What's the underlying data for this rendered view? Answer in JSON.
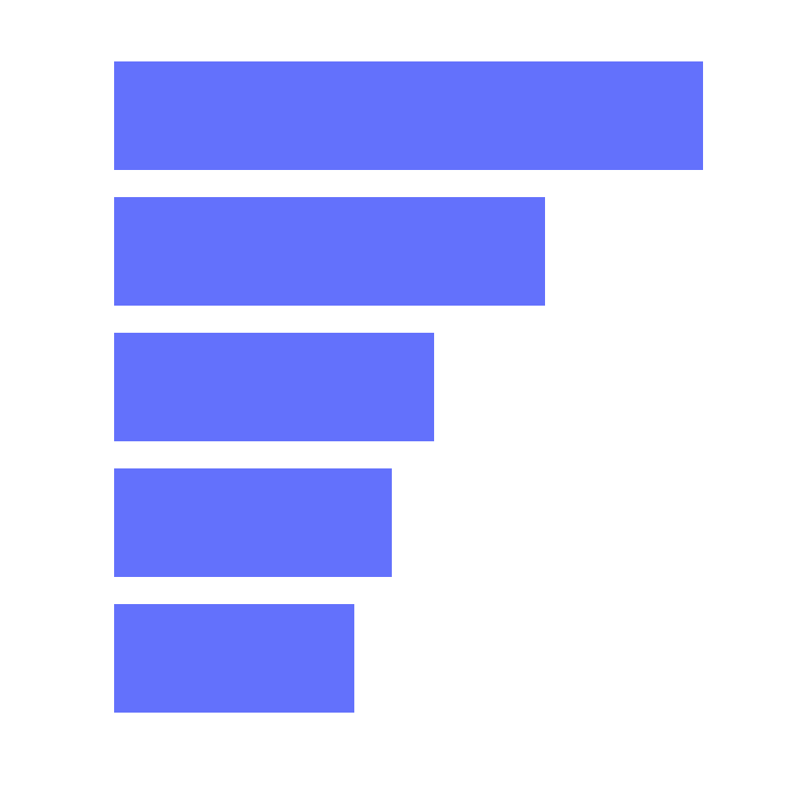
{
  "chart_data": {
    "type": "bar",
    "orientation": "horizontal",
    "values": [
      738,
      540,
      401,
      348,
      301
    ],
    "xlim": [
      0,
      738
    ],
    "grid": false,
    "legend": "none",
    "bar_color": "#6371fc"
  }
}
